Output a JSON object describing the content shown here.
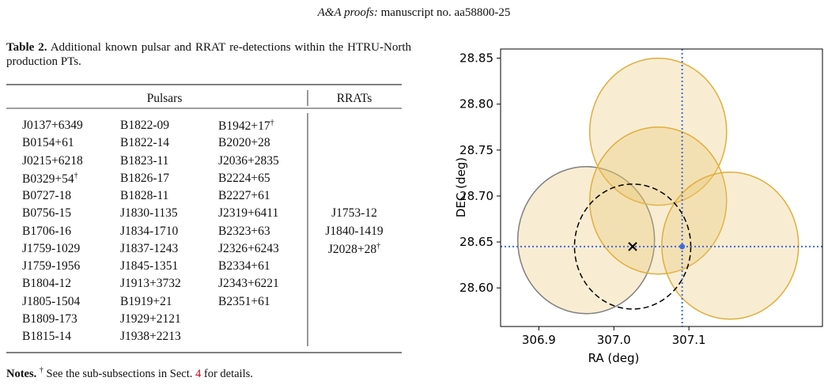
{
  "header": {
    "journal": "A&A proofs:",
    "manuscript": "manuscript no. aa58800-25"
  },
  "table": {
    "label": "Table 2.",
    "caption": "Additional known pulsar and RRAT re-detections within the HTRU-North production PTs.",
    "headers": [
      "Pulsars",
      "RRATs"
    ],
    "pulsars": [
      [
        "J0137+6349",
        "B0154+61",
        "J0215+6218",
        {
          "name": "B0329+54",
          "sup": "†"
        },
        "B0727-18",
        "B0756-15",
        "B1706-16",
        "J1759-1029",
        "J1759-1956",
        "B1804-12",
        "J1805-1504",
        "B1809-173",
        "B1815-14"
      ],
      [
        "B1822-09",
        "B1822-14",
        "B1823-11",
        "B1826-17",
        "B1828-11",
        "J1830-1135",
        "J1834-1710",
        "J1837-1243",
        "J1845-1351",
        "J1913+3732",
        "B1919+21",
        "J1929+2121",
        "J1938+2213"
      ],
      [
        {
          "name": "B1942+17",
          "sup": "†"
        },
        "B2020+28",
        "J2036+2835",
        "B2224+65",
        "B2227+61",
        "J2319+6411",
        "B2323+63",
        "J2326+6243",
        "B2334+61",
        "J2343+6221",
        "B2351+61"
      ]
    ],
    "rrats": [
      "J1753-12",
      "J1840-1419",
      {
        "name": "J2028+28",
        "sup": "†"
      }
    ]
  },
  "notes": {
    "label": "Notes.",
    "mark": "†",
    "text": "See the sub-subsections in Sect.",
    "link": "4",
    "end": "for details."
  },
  "chart_data": {
    "type": "scatter",
    "xlabel": "RA (deg)",
    "ylabel": "DEC (deg)",
    "xlim": [
      306.849,
      307.278
    ],
    "ylim": [
      28.558,
      28.86
    ],
    "xticks": [
      306.9,
      {
        "value": 307.0,
        "label": "307.0"
      },
      307.1
    ],
    "yticks": [
      {
        "value": 28.6,
        "label": "28.60"
      },
      28.65,
      {
        "value": 28.7,
        "label": "28.70"
      },
      28.75,
      {
        "value": 28.8,
        "label": "28.80"
      },
      28.85
    ],
    "circles": {
      "x": [
        306.963,
        307.059,
        307.059,
        307.155
      ],
      "y": [
        28.652,
        28.77,
        28.695,
        28.646
      ],
      "radius": [
        0.08,
        0.08,
        0.08,
        0.08
      ],
      "edge_colors": [
        "#7f7f7f",
        "#e0ad3a",
        "#e0ad3a",
        "#e0ad3a"
      ],
      "fill_color": "#e8c36a"
    },
    "dashed_circle": {
      "x": 307.025,
      "y": 28.645,
      "radius": 0.068,
      "color": "#000000"
    },
    "marker": {
      "x": 307.025,
      "y": 28.645,
      "color": "#000000"
    },
    "crosshair": {
      "x": 307.091,
      "y": 28.645,
      "color": "#4169e1"
    }
  }
}
